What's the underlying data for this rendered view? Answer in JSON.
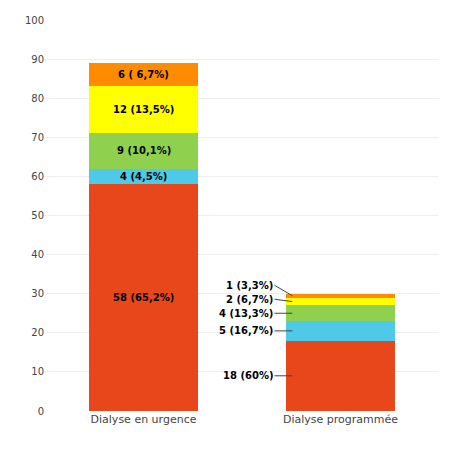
{
  "chart_data": {
    "type": "bar",
    "stacked": true,
    "data_labels": true,
    "categories": [
      "Dialyse en urgence",
      "Dialyse programmée"
    ],
    "series": [
      {
        "color": "#E8471C",
        "values": [
          58,
          18
        ],
        "value_labels": [
          "58 (65,2%)",
          "18 (60%)"
        ]
      },
      {
        "color": "#4FC9E8",
        "values": [
          4,
          5
        ],
        "value_labels": [
          "4 (4,5%)",
          "5 (16,7%)"
        ]
      },
      {
        "color": "#8FD14F",
        "values": [
          9,
          4
        ],
        "value_labels": [
          "9 (10,1%)",
          "4 (13,3%)"
        ]
      },
      {
        "color": "#FFFF00",
        "values": [
          12,
          2
        ],
        "value_labels": [
          "12 (13,5%)",
          "2 (6,7%)"
        ]
      },
      {
        "color": "#FF8C00",
        "values": [
          6,
          1
        ],
        "value_labels": [
          "6 ( 6,7%)",
          "1 (3,3%)"
        ]
      }
    ],
    "ylim": [
      0,
      100
    ],
    "yticks": [
      0,
      10,
      20,
      30,
      40,
      50,
      60,
      70,
      80,
      90,
      100
    ],
    "grid": true
  }
}
